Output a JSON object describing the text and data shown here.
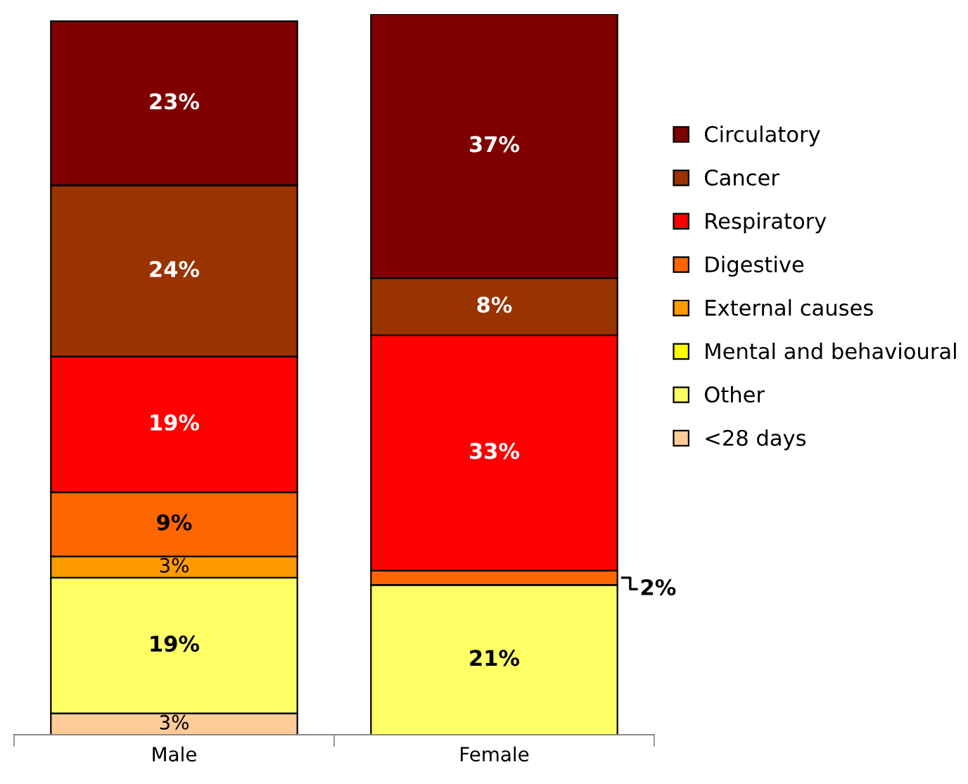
{
  "chart_data": {
    "type": "bar",
    "stacked": true,
    "categories": [
      "Male",
      "Female"
    ],
    "series": [
      {
        "name": "<28 days",
        "color": "#ffcc99",
        "values": [
          3,
          0
        ],
        "value_labels": [
          "3%",
          null
        ]
      },
      {
        "name": "Other",
        "color": "#ffff66",
        "values": [
          19,
          21
        ],
        "value_labels": [
          "19%",
          "21%"
        ]
      },
      {
        "name": "Mental and behavioural",
        "color": "#ffff00",
        "values": [
          0,
          0
        ],
        "value_labels": [
          null,
          null
        ]
      },
      {
        "name": "External causes",
        "color": "#ff9900",
        "values": [
          3,
          0
        ],
        "value_labels": [
          "3%",
          null
        ]
      },
      {
        "name": "Digestive",
        "color": "#ff6600",
        "values": [
          9,
          2
        ],
        "value_labels": [
          "9%",
          "2%"
        ]
      },
      {
        "name": "Respiratory",
        "color": "#ff0000",
        "values": [
          19,
          33
        ],
        "value_labels": [
          "19%",
          "33%"
        ]
      },
      {
        "name": "Cancer",
        "color": "#993300",
        "values": [
          24,
          8
        ],
        "value_labels": [
          "24%",
          "8%"
        ]
      },
      {
        "name": "Circulatory",
        "color": "#800000",
        "values": [
          23,
          37
        ],
        "value_labels": [
          "23%",
          "37%"
        ]
      }
    ],
    "legend": "right",
    "grid": false
  }
}
